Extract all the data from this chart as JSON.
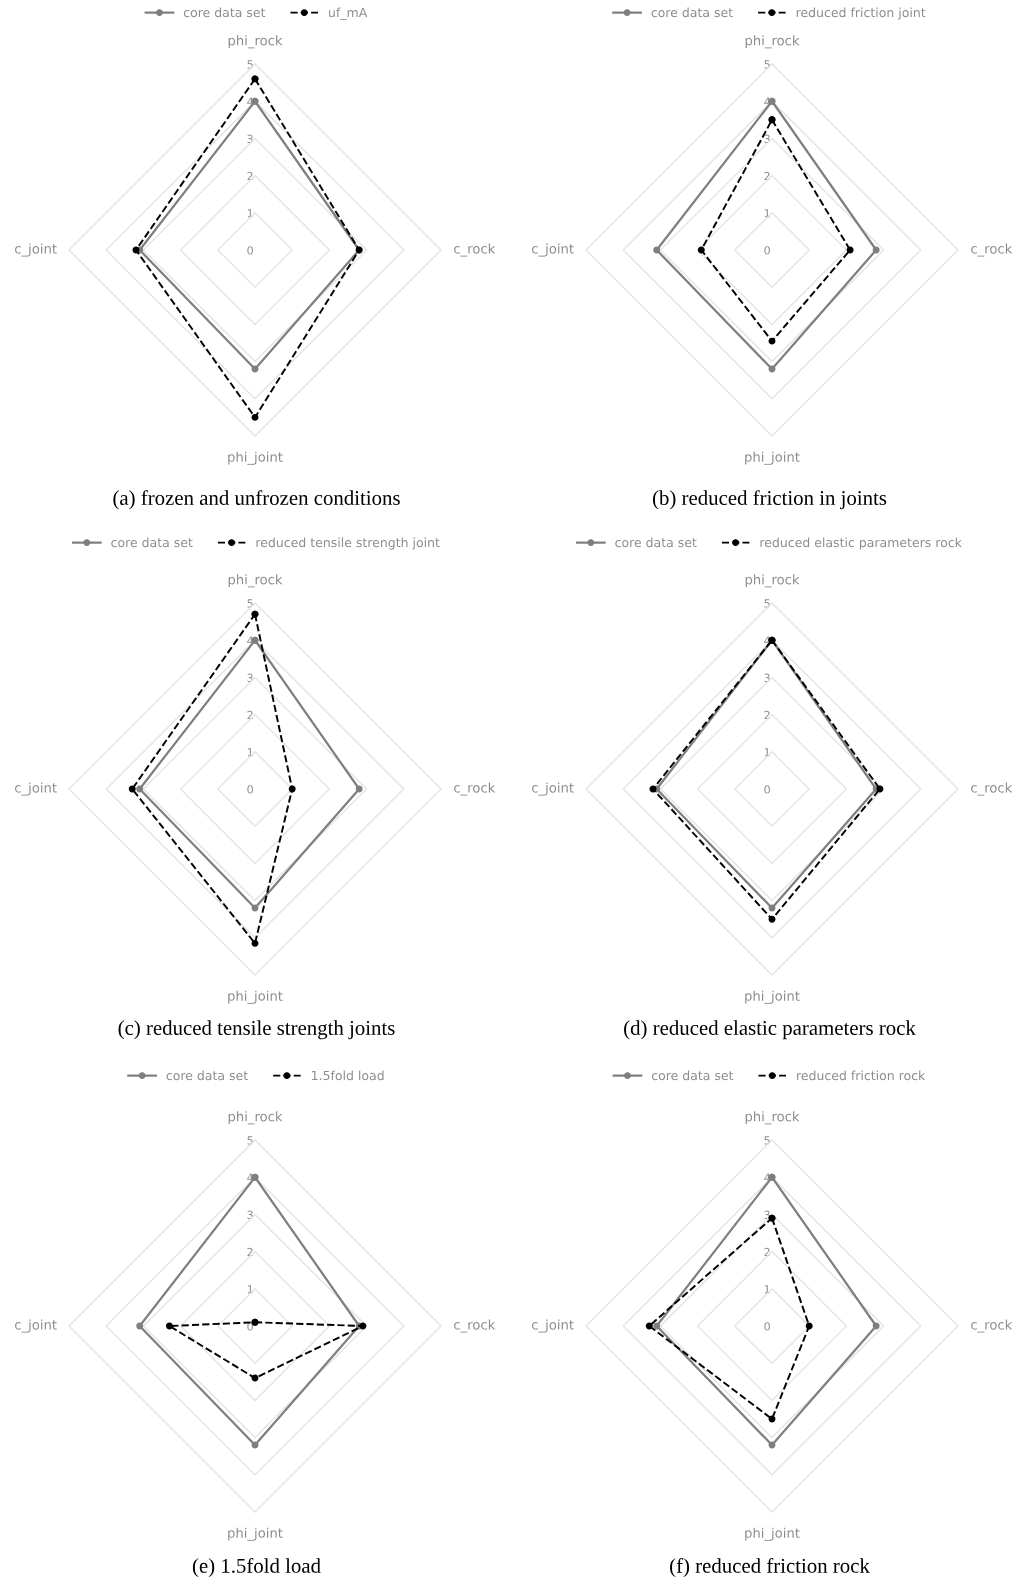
{
  "chart_data": [
    {
      "type": "radar",
      "title": "(a) frozen and unfrozen conditions",
      "categories": [
        "phi_rock",
        "c_rock",
        "phi_joint",
        "c_joint"
      ],
      "ylim": [
        0,
        5
      ],
      "yticks": [
        0,
        1,
        2,
        3,
        4,
        5
      ],
      "grid": true,
      "legend": "top",
      "marker": "circle",
      "series": [
        {
          "name": "core data set",
          "color": "#7f7f7f",
          "line_style": "solid",
          "values": [
            4,
            2.8,
            3.2,
            3.1
          ]
        },
        {
          "name": "uf_mA",
          "color": "#000000",
          "line_style": "dashed",
          "values": [
            4.6,
            2.8,
            4.5,
            3.2
          ]
        }
      ]
    },
    {
      "type": "radar",
      "title": "(b) reduced friction in joints",
      "categories": [
        "phi_rock",
        "c_rock",
        "phi_joint",
        "c_joint"
      ],
      "ylim": [
        0,
        5
      ],
      "yticks": [
        0,
        1,
        2,
        3,
        4,
        5
      ],
      "grid": true,
      "legend": "top",
      "marker": "circle",
      "series": [
        {
          "name": "core data set",
          "color": "#7f7f7f",
          "line_style": "solid",
          "values": [
            4,
            2.8,
            3.2,
            3.1
          ]
        },
        {
          "name": "reduced friction joint",
          "color": "#000000",
          "line_style": "dashed",
          "values": [
            3.5,
            2.1,
            2.45,
            1.9
          ]
        }
      ]
    },
    {
      "type": "radar",
      "title": "(c) reduced tensile strength joints",
      "categories": [
        "phi_rock",
        "c_rock",
        "phi_joint",
        "c_joint"
      ],
      "ylim": [
        0,
        5
      ],
      "yticks": [
        0,
        1,
        2,
        3,
        4,
        5
      ],
      "grid": true,
      "legend": "top",
      "marker": "circle",
      "series": [
        {
          "name": "core data set",
          "color": "#7f7f7f",
          "line_style": "solid",
          "values": [
            4,
            2.8,
            3.2,
            3.1
          ]
        },
        {
          "name": "reduced tensile strength joint",
          "color": "#000000",
          "line_style": "dashed",
          "values": [
            4.7,
            1.0,
            4.15,
            3.3
          ]
        }
      ]
    },
    {
      "type": "radar",
      "title": "(d) reduced elastic parameters rock",
      "categories": [
        "phi_rock",
        "c_rock",
        "phi_joint",
        "c_joint"
      ],
      "ylim": [
        0,
        5
      ],
      "yticks": [
        0,
        1,
        2,
        3,
        4,
        5
      ],
      "grid": true,
      "legend": "top",
      "marker": "circle",
      "series": [
        {
          "name": "core data set",
          "color": "#7f7f7f",
          "line_style": "solid",
          "values": [
            4,
            2.8,
            3.2,
            3.1
          ]
        },
        {
          "name": "reduced elastic parameters rock",
          "color": "#000000",
          "line_style": "dashed",
          "values": [
            4,
            2.9,
            3.5,
            3.2
          ]
        }
      ]
    },
    {
      "type": "radar",
      "title": "(e) 1.5fold load",
      "categories": [
        "phi_rock",
        "c_rock",
        "phi_joint",
        "c_joint"
      ],
      "ylim": [
        0,
        5
      ],
      "yticks": [
        0,
        1,
        2,
        3,
        4,
        5
      ],
      "grid": true,
      "legend": "top",
      "marker": "circle",
      "series": [
        {
          "name": "core data set",
          "color": "#7f7f7f",
          "line_style": "solid",
          "values": [
            4,
            2.8,
            3.2,
            3.1
          ]
        },
        {
          "name": "1.5fold load",
          "color": "#000000",
          "line_style": "dashed",
          "values": [
            0.1,
            2.9,
            1.4,
            2.3
          ]
        }
      ]
    },
    {
      "type": "radar",
      "title": "(f) reduced friction rock",
      "categories": [
        "phi_rock",
        "c_rock",
        "phi_joint",
        "c_joint"
      ],
      "ylim": [
        0,
        5
      ],
      "yticks": [
        0,
        1,
        2,
        3,
        4,
        5
      ],
      "grid": true,
      "legend": "top",
      "marker": "circle",
      "series": [
        {
          "name": "core data set",
          "color": "#7f7f7f",
          "line_style": "solid",
          "values": [
            4,
            2.8,
            3.2,
            3.1
          ]
        },
        {
          "name": "reduced friction rock",
          "color": "#000000",
          "line_style": "dashed",
          "values": [
            2.9,
            1.0,
            2.5,
            3.3
          ]
        }
      ]
    }
  ]
}
